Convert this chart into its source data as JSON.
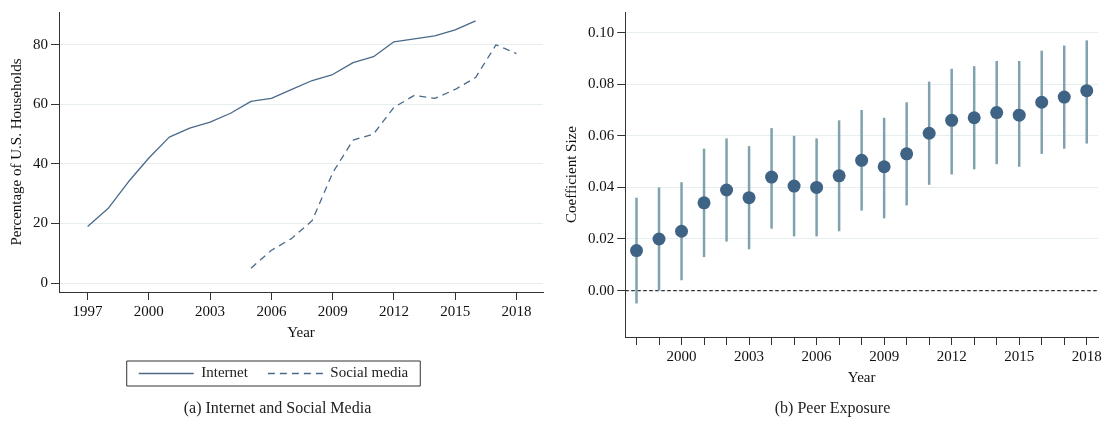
{
  "chart_data": [
    {
      "type": "line",
      "xlabel": "Year",
      "ylabel": "Percentage of U.S. Households",
      "annotations": [
        "(a) Internet and Social Media"
      ],
      "xlim": [
        1995.6,
        2019.3
      ],
      "ylim": [
        -3,
        91
      ],
      "xticks": [
        1997,
        2000,
        2003,
        2006,
        2009,
        2012,
        2015,
        2018
      ],
      "yticks": [
        0,
        20,
        40,
        60,
        80
      ],
      "grid": "y",
      "legend": "bottom",
      "series": [
        {
          "name": "Internet",
          "color": "#4a6a8a",
          "line_style": "solid",
          "x": [
            1997,
            1998,
            1999,
            2000,
            2001,
            2002,
            2003,
            2004,
            2005,
            2006,
            2007,
            2008,
            2009,
            2010,
            2011,
            2012,
            2013,
            2014,
            2015,
            2016
          ],
          "values": [
            19,
            25,
            34,
            42,
            49,
            52,
            54,
            57,
            61,
            62,
            65,
            68,
            70,
            74,
            76,
            81,
            82,
            83,
            85,
            88
          ]
        },
        {
          "name": "Social media",
          "color": "#4a6a8a",
          "line_style": "dashed",
          "x": [
            2005,
            2006,
            2007,
            2008,
            2009,
            2010,
            2011,
            2012,
            2013,
            2014,
            2015,
            2016,
            2017,
            2018
          ],
          "values": [
            5,
            11,
            15,
            21,
            37,
            48,
            50,
            59,
            63,
            62,
            65,
            69,
            80,
            77
          ]
        }
      ]
    },
    {
      "type": "scatter",
      "xlabel": "Year",
      "ylabel": "Coefficient Size",
      "annotations": [
        "(b) Peer Exposure"
      ],
      "xlim": [
        1997.5,
        2018.5
      ],
      "ylim": [
        -0.018,
        0.108
      ],
      "xticks": [
        {
          "value": 1998,
          "label": null
        },
        {
          "value": 1999,
          "label": null
        },
        2000,
        {
          "value": 2001,
          "label": null
        },
        {
          "value": 2002,
          "label": null
        },
        2003,
        {
          "value": 2004,
          "label": null
        },
        {
          "value": 2005,
          "label": null
        },
        2006,
        {
          "value": 2007,
          "label": null
        },
        {
          "value": 2008,
          "label": null
        },
        2009,
        {
          "value": 2010,
          "label": null
        },
        {
          "value": 2011,
          "label": null
        },
        2012,
        {
          "value": 2013,
          "label": null
        },
        {
          "value": 2014,
          "label": null
        },
        2015,
        {
          "value": 2016,
          "label": null
        },
        {
          "value": 2017,
          "label": null
        },
        2018
      ],
      "yticks": [
        {
          "value": 0,
          "label": "0.00"
        },
        {
          "value": 0.02,
          "label": "0.02"
        },
        {
          "value": 0.04,
          "label": "0.04"
        },
        {
          "value": 0.06,
          "label": "0.06"
        },
        {
          "value": 0.08,
          "label": "0.08"
        },
        {
          "value": 0.1,
          "label": "0.10"
        }
      ],
      "grid": "y",
      "marker": "circle",
      "ref_lines": [
        {
          "axis": "y",
          "value": 0,
          "color": "#333333",
          "line_style": "dashed"
        }
      ],
      "series": [
        {
          "color": "#3e6384",
          "x": [
            1998,
            1999,
            2000,
            2001,
            2002,
            2003,
            2004,
            2005,
            2006,
            2007,
            2008,
            2009,
            2010,
            2011,
            2012,
            2013,
            2014,
            2015,
            2016,
            2017,
            2018
          ],
          "values": [
            0.0155,
            0.02,
            0.023,
            0.034,
            0.039,
            0.036,
            0.044,
            0.0405,
            0.04,
            0.0445,
            0.0505,
            0.048,
            0.053,
            0.061,
            0.066,
            0.067,
            0.069,
            0.068,
            0.073,
            0.075,
            0.0775
          ],
          "errors": [
            [
              -0.005,
              0.036
            ],
            [
              0,
              0.04
            ],
            [
              0.004,
              0.042
            ],
            [
              0.013,
              0.055
            ],
            [
              0.019,
              0.059
            ],
            [
              0.016,
              0.056
            ],
            [
              0.024,
              0.063
            ],
            [
              0.021,
              0.06
            ],
            [
              0.021,
              0.059
            ],
            [
              0.023,
              0.066
            ],
            [
              0.031,
              0.07
            ],
            [
              0.028,
              0.067
            ],
            [
              0.033,
              0.073
            ],
            [
              0.041,
              0.081
            ],
            [
              0.045,
              0.086
            ],
            [
              0.047,
              0.087
            ],
            [
              0.049,
              0.089
            ],
            [
              0.048,
              0.089
            ],
            [
              0.053,
              0.093
            ],
            [
              0.055,
              0.095
            ],
            [
              0.057,
              0.097
            ]
          ]
        }
      ]
    }
  ]
}
